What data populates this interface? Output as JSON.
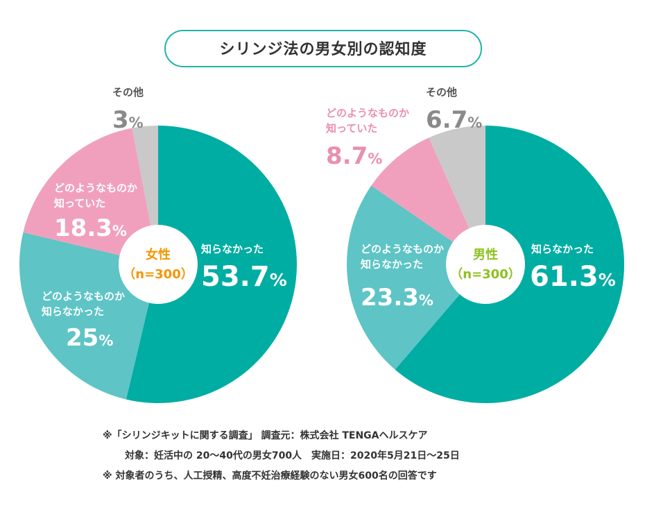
{
  "title": "シリンジ法の男女別の認知度",
  "chart_data": [
    {
      "type": "pie",
      "center_label": "女性",
      "center_sub": "（n=300）",
      "center_color": "#f29600",
      "slices": [
        {
          "label": "知らなかった",
          "value": 53.7,
          "value_text": "53.7",
          "color": "#00ada3"
        },
        {
          "label": "どのようなものか 知らなかった",
          "value": 25,
          "value_text": "25",
          "color": "#5ec4c5"
        },
        {
          "label": "どのようなものか 知っていた",
          "value": 18.3,
          "value_text": "18.3",
          "color": "#f0a0bd"
        },
        {
          "label": "その他",
          "value": 3,
          "value_text": "3",
          "color": "#c9c9ca"
        }
      ]
    },
    {
      "type": "pie",
      "center_label": "男性",
      "center_sub": "（n=300）",
      "center_color": "#8cc11f",
      "slices": [
        {
          "label": "知らなかった",
          "value": 61.3,
          "value_text": "61.3",
          "color": "#00ada3"
        },
        {
          "label": "どのようなものか 知らなかった",
          "value": 23.3,
          "value_text": "23.3",
          "color": "#5ec4c5"
        },
        {
          "label": "どのようなものか 知っていた",
          "value": 8.7,
          "value_text": "8.7",
          "color": "#f0a0bd"
        },
        {
          "label": "その他",
          "value": 6.7,
          "value_text": "6.7",
          "color": "#c9c9ca"
        }
      ]
    }
  ],
  "percent_sign": "%",
  "footnote": {
    "line1": "※「シリンジキットに関する調査」 調査元：株式会社 TENGAヘルスケア",
    "line2": "対象：妊活中の 20〜40代の男女700人　実施日：2020年5月21日〜25日",
    "line3": "※ 対象者のうち、人工授精、高度不妊治療経験のない男女600名の回答です"
  }
}
